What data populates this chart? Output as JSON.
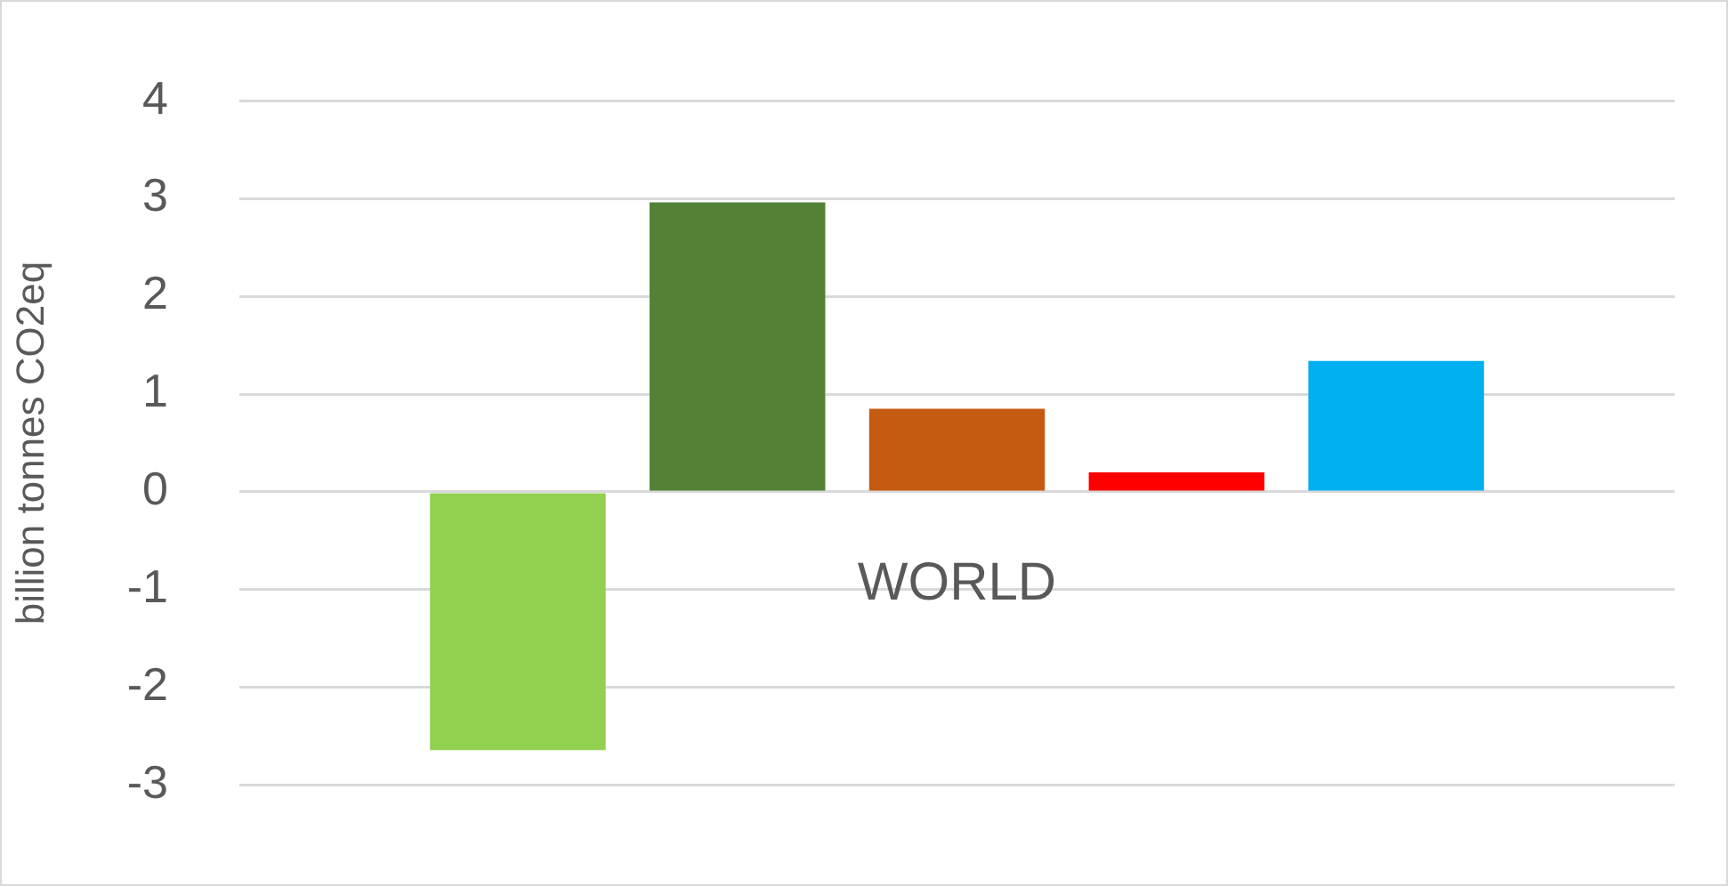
{
  "chart_data": {
    "type": "bar",
    "ylabel": "billion tonnes CO2eq",
    "categories": [
      "WORLD"
    ],
    "series": [
      {
        "color": "#92d050",
        "values": [
          -2.64
        ]
      },
      {
        "color": "#538135",
        "values": [
          2.96
        ]
      },
      {
        "color": "#c55a11",
        "values": [
          0.85
        ]
      },
      {
        "color": "#ff0000",
        "values": [
          0.2
        ]
      },
      {
        "color": "#00b0f0",
        "values": [
          1.34
        ]
      }
    ],
    "ylim": [
      -3,
      4
    ],
    "yticks": [
      -3,
      -2,
      -1,
      0,
      1,
      2,
      3,
      4
    ],
    "grid": "y",
    "legend": false
  }
}
